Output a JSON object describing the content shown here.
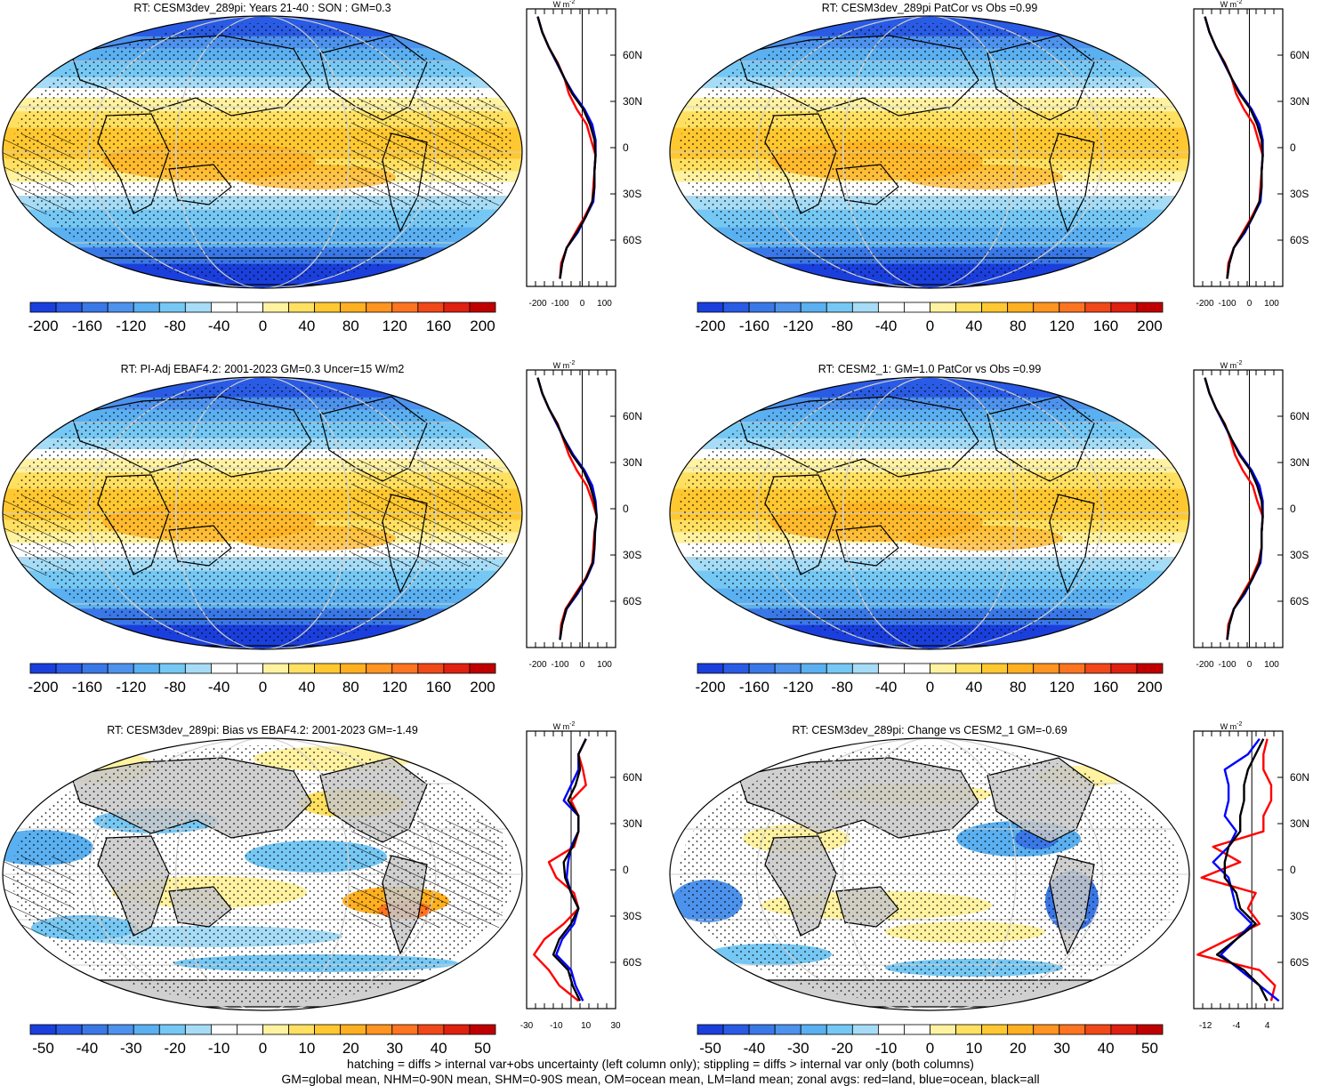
{
  "footer": {
    "line1": "hatching = diffs > internal var+obs uncertainty (left column only); stippling = diffs > internal var only (both columns)",
    "line2": "GM=global mean, NHM=0-90N mean, SHM=0-90S mean, OM=ocean mean, LM=land mean; zonal avgs: red=land, blue=ocean, black=all"
  },
  "colors": {
    "scale": [
      "#1a3fdc",
      "#2a5be4",
      "#3a78e8",
      "#4d92ec",
      "#5ab0f0",
      "#76c8f4",
      "#a6dcf6",
      "#ffffff",
      "#ffffff",
      "#fff2a0",
      "#ffe060",
      "#ffc830",
      "#ffb020",
      "#ff9420",
      "#ff7420",
      "#f04818",
      "#e02010",
      "#c00000"
    ],
    "land_gray": "#c8c8c8",
    "land_line": "#ff0000",
    "ocean_line": "#0000ff",
    "all_line": "#000000"
  },
  "lat_ticks": [
    "60N",
    "30N",
    "0",
    "30S",
    "60S"
  ],
  "zonal_unit": "W m",
  "zonal_unit_exp": "-2",
  "panels": [
    {
      "id": "model-mean",
      "title": "RT: CESM3dev_289pi: Years 21-40 : SON : GM=0.3",
      "colorbar_labels": [
        "-200",
        "-160",
        "-120",
        "-80",
        "-40",
        "0",
        "40",
        "80",
        "120",
        "160",
        "200"
      ],
      "zonal_ticks": [
        "-200",
        "-100",
        "0",
        "100"
      ],
      "zonal_xlim": [
        -250,
        150
      ],
      "hatching": true,
      "chart_data": {
        "type": "line",
        "x_label": "W m-2",
        "lat": [
          -85,
          -75,
          -65,
          -55,
          -45,
          -35,
          -25,
          -15,
          -5,
          5,
          15,
          25,
          35,
          45,
          55,
          65,
          75,
          85
        ],
        "series": [
          {
            "name": "land",
            "color": "#ff0000",
            "values": [
              -100,
              -95,
              -70,
              -30,
              10,
              45,
              50,
              55,
              60,
              40,
              20,
              -25,
              -60,
              -80,
              -110,
              -150,
              -180,
              -200
            ]
          },
          {
            "name": "ocean",
            "color": "#0000ff",
            "values": [
              -100,
              -90,
              -70,
              -20,
              15,
              50,
              55,
              55,
              60,
              60,
              45,
              10,
              -40,
              -80,
              -115,
              -150,
              -180,
              -200
            ]
          },
          {
            "name": "all",
            "color": "#000000",
            "values": [
              -100,
              -90,
              -70,
              -25,
              15,
              45,
              55,
              55,
              60,
              55,
              35,
              5,
              -45,
              -80,
              -112,
              -150,
              -180,
              -200
            ]
          }
        ]
      }
    },
    {
      "id": "model-patcor",
      "title": "RT: CESM3dev_289pi PatCor vs Obs =0.99",
      "colorbar_labels": [
        "-200",
        "-160",
        "-120",
        "-80",
        "-40",
        "0",
        "40",
        "80",
        "120",
        "160",
        "200"
      ],
      "zonal_ticks": [
        "-200",
        "-100",
        "0",
        "100"
      ],
      "zonal_xlim": [
        -250,
        150
      ],
      "hatching": false,
      "chart_data": {
        "type": "line",
        "x_label": "W m-2",
        "lat": [
          -85,
          -75,
          -65,
          -55,
          -45,
          -35,
          -25,
          -15,
          -5,
          5,
          15,
          25,
          35,
          45,
          55,
          65,
          75,
          85
        ],
        "series": [
          {
            "name": "land",
            "color": "#ff0000",
            "values": [
              -100,
              -95,
              -70,
              -30,
              10,
              45,
              50,
              55,
              60,
              40,
              20,
              -25,
              -60,
              -80,
              -110,
              -150,
              -180,
              -200
            ]
          },
          {
            "name": "ocean",
            "color": "#0000ff",
            "values": [
              -100,
              -90,
              -70,
              -20,
              15,
              50,
              55,
              55,
              60,
              60,
              45,
              10,
              -40,
              -80,
              -115,
              -150,
              -180,
              -200
            ]
          },
          {
            "name": "all",
            "color": "#000000",
            "values": [
              -100,
              -90,
              -70,
              -25,
              15,
              45,
              55,
              55,
              60,
              55,
              35,
              5,
              -45,
              -80,
              -112,
              -150,
              -180,
              -200
            ]
          }
        ]
      }
    },
    {
      "id": "obs",
      "title": "RT: PI-Adj EBAF4.2: 2001-2023 GM=0.3 Uncer=15 W/m2",
      "colorbar_labels": [
        "-200",
        "-160",
        "-120",
        "-80",
        "-40",
        "0",
        "40",
        "80",
        "120",
        "160",
        "200"
      ],
      "zonal_ticks": [
        "-200",
        "-100",
        "0",
        "100"
      ],
      "zonal_xlim": [
        -250,
        150
      ],
      "hatching": true,
      "chart_data": {
        "type": "line",
        "x_label": "W m-2",
        "lat": [
          -85,
          -75,
          -65,
          -55,
          -45,
          -35,
          -25,
          -15,
          -5,
          5,
          15,
          25,
          35,
          45,
          55,
          65,
          75,
          85
        ],
        "series": [
          {
            "name": "land",
            "color": "#ff0000",
            "values": [
              -100,
              -95,
              -75,
              -30,
              15,
              45,
              50,
              55,
              65,
              45,
              20,
              -25,
              -60,
              -85,
              -110,
              -150,
              -180,
              -200
            ]
          },
          {
            "name": "ocean",
            "color": "#0000ff",
            "values": [
              -100,
              -90,
              -70,
              -20,
              20,
              50,
              55,
              58,
              65,
              60,
              45,
              10,
              -40,
              -80,
              -115,
              -150,
              -180,
              -200
            ]
          },
          {
            "name": "all",
            "color": "#000000",
            "values": [
              -100,
              -90,
              -72,
              -25,
              18,
              47,
              55,
              57,
              65,
              55,
              35,
              5,
              -45,
              -82,
              -112,
              -150,
              -180,
              -200
            ]
          }
        ]
      }
    },
    {
      "id": "cesm2",
      "title": "RT: CESM2_1: GM=1.0 PatCor vs Obs =0.99",
      "colorbar_labels": [
        "-200",
        "-160",
        "-120",
        "-80",
        "-40",
        "0",
        "40",
        "80",
        "120",
        "160",
        "200"
      ],
      "zonal_ticks": [
        "-200",
        "-100",
        "0",
        "100"
      ],
      "zonal_xlim": [
        -250,
        150
      ],
      "hatching": false,
      "chart_data": {
        "type": "line",
        "x_label": "W m-2",
        "lat": [
          -85,
          -75,
          -65,
          -55,
          -45,
          -35,
          -25,
          -15,
          -5,
          5,
          15,
          25,
          35,
          45,
          55,
          65,
          75,
          85
        ],
        "series": [
          {
            "name": "land",
            "color": "#ff0000",
            "values": [
              -100,
              -95,
              -70,
              -30,
              10,
              40,
              55,
              55,
              60,
              35,
              15,
              -30,
              -65,
              -85,
              -110,
              -150,
              -180,
              -200
            ]
          },
          {
            "name": "ocean",
            "color": "#0000ff",
            "values": [
              -100,
              -90,
              -70,
              -20,
              15,
              50,
              55,
              55,
              60,
              60,
              45,
              10,
              -40,
              -80,
              -115,
              -150,
              -180,
              -200
            ]
          },
          {
            "name": "all",
            "color": "#000000",
            "values": [
              -100,
              -90,
              -70,
              -25,
              15,
              45,
              55,
              55,
              60,
              55,
              35,
              5,
              -45,
              -80,
              -112,
              -150,
              -180,
              -200
            ]
          }
        ]
      }
    },
    {
      "id": "bias",
      "title": "RT: CESM3dev_289pi: Bias vs EBAF4.2: 2001-2023  GM=-1.49",
      "colorbar_labels": [
        "-50",
        "-40",
        "-30",
        "-20",
        "-10",
        "0",
        "10",
        "20",
        "30",
        "40",
        "50"
      ],
      "zonal_ticks": [
        "-30",
        "-10",
        "10",
        "30"
      ],
      "zonal_xlim": [
        -30,
        30
      ],
      "hatching": true,
      "chart_data": {
        "type": "line",
        "x_label": "W m-2",
        "lat": [
          -85,
          -75,
          -65,
          -55,
          -45,
          -35,
          -25,
          -15,
          -5,
          5,
          15,
          25,
          35,
          45,
          55,
          65,
          75,
          85
        ],
        "series": [
          {
            "name": "land",
            "color": "#ff0000",
            "values": [
              5,
              -8,
              -15,
              -25,
              -18,
              -5,
              5,
              2,
              -10,
              -15,
              2,
              5,
              5,
              0,
              10,
              8,
              5,
              10
            ]
          },
          {
            "name": "ocean",
            "color": "#0000ff",
            "values": [
              8,
              3,
              0,
              -10,
              -6,
              2,
              5,
              0,
              -3,
              -2,
              0,
              5,
              5,
              -5,
              0,
              5,
              5,
              10
            ]
          },
          {
            "name": "all",
            "color": "#000000",
            "values": [
              6,
              1,
              -2,
              -12,
              -8,
              0,
              5,
              0,
              -4,
              -5,
              1,
              5,
              5,
              -2,
              3,
              6,
              5,
              10
            ]
          }
        ]
      }
    },
    {
      "id": "change",
      "title": "RT: CESM3dev_289pi: Change vs CESM2_1 GM=-0.69",
      "colorbar_labels": [
        "-50",
        "-40",
        "-30",
        "-20",
        "-10",
        "0",
        "10",
        "20",
        "30",
        "40",
        "50"
      ],
      "zonal_ticks": [
        "-12",
        "-4",
        "4"
      ],
      "zonal_xlim": [
        -15,
        8
      ],
      "hatching": false,
      "chart_data": {
        "type": "line",
        "x_label": "W m-2",
        "lat": [
          -85,
          -75,
          -65,
          -55,
          -45,
          -35,
          -25,
          -15,
          -5,
          5,
          15,
          25,
          35,
          45,
          55,
          65,
          75,
          85
        ],
        "series": [
          {
            "name": "land",
            "color": "#ff0000",
            "values": [
              5,
              6,
              2,
              -14,
              -6,
              2,
              -1,
              1,
              -13,
              -3,
              -10,
              3,
              3,
              5,
              5,
              3,
              3,
              4
            ]
          },
          {
            "name": "ocean",
            "color": "#0000ff",
            "values": [
              7,
              2,
              -3,
              -8,
              -4,
              0,
              -4,
              -5,
              -6,
              -10,
              -6,
              -4,
              -7,
              -6,
              -6,
              -7,
              -1,
              2
            ]
          },
          {
            "name": "all",
            "color": "#000000",
            "values": [
              4,
              2,
              -2,
              -9,
              -4,
              1,
              -3,
              -4,
              -7,
              -7,
              -6,
              -3,
              -3,
              -2,
              -2,
              -1,
              1,
              3
            ]
          }
        ]
      }
    }
  ]
}
